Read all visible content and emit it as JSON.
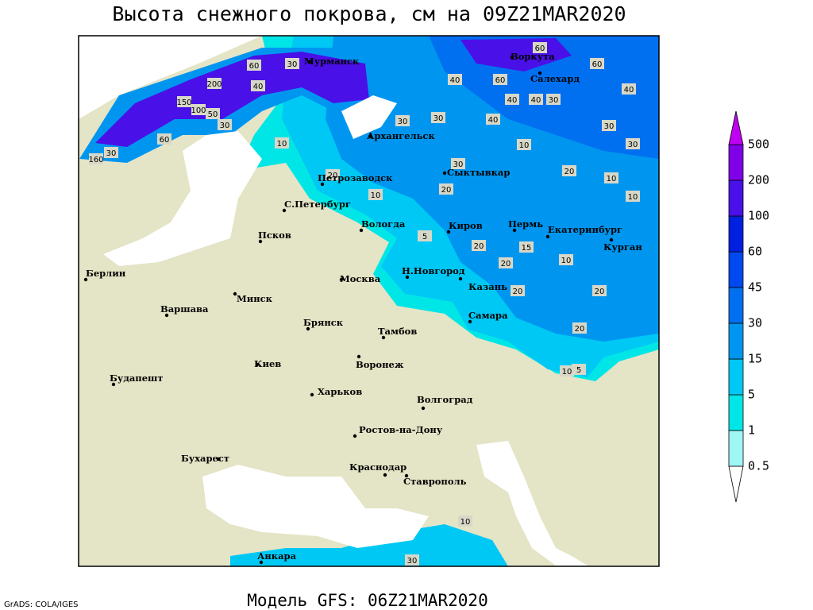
{
  "header": {
    "title": "Высота снежного покрова, см на 09Z21MAR2020"
  },
  "map": {
    "cities": [
      "Мурманск",
      "Воркута",
      "Салехард",
      "Архангельск",
      "Петрозаводск",
      "Сыктывкар",
      "С.Петербург",
      "Вологда",
      "Киров",
      "Пермь",
      "Екатеринбург",
      "Курган",
      "Псков",
      "Берлин",
      "Н.Новгород",
      "Москва",
      "Казань",
      "Минск",
      "Варшава",
      "Самара",
      "Брянск",
      "Тамбов",
      "Киев",
      "Воронеж",
      "Будапешт",
      "Харьков",
      "Волгоград",
      "Ростов-на-Дону",
      "Бухарест",
      "Краснодар",
      "Ставрополь",
      "Анкара"
    ],
    "contour_labels": [
      60,
      60,
      40,
      60,
      40,
      40,
      30,
      40,
      30,
      30,
      40,
      30,
      10,
      30,
      20,
      10,
      10,
      30,
      20,
      10,
      5,
      20,
      15,
      10,
      20,
      20,
      20,
      20,
      10,
      5,
      30,
      10,
      60,
      30,
      40,
      200,
      150,
      100,
      50,
      30,
      60,
      30,
      160,
      20,
      10
    ]
  },
  "legend": {
    "levels": [
      0.5,
      1,
      5,
      15,
      30,
      45,
      60,
      100,
      200,
      500
    ],
    "colors": [
      "#ffffff",
      "#a0f5f5",
      "#00e6e6",
      "#00c8f5",
      "#0096f0",
      "#0070f0",
      "#0048f0",
      "#0020e0",
      "#4a10e8",
      "#8000e8",
      "#c000f0"
    ]
  },
  "footer": {
    "model": "Модель GFS: 06Z21MAR2020",
    "credit": "GrADS: COLA/IGES"
  }
}
